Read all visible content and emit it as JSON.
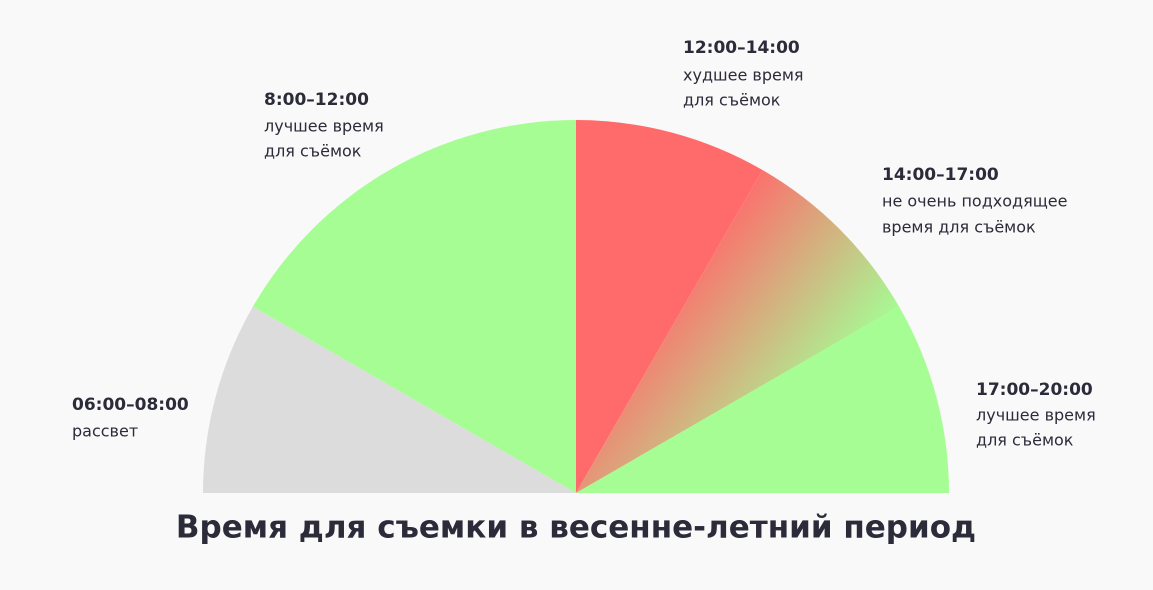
{
  "title": "Время для съемки в весенне-летний период",
  "segments": [
    {
      "time": "06:00–08:00",
      "lines": [
        "рассвет"
      ]
    },
    {
      "time": "8:00–12:00",
      "lines": [
        "лучшее время",
        "для съёмок"
      ]
    },
    {
      "time": "12:00–14:00",
      "lines": [
        "худшее время",
        "для съёмок"
      ]
    },
    {
      "time": "14:00–17:00",
      "lines": [
        "не очень подходящее",
        "время для съёмок"
      ]
    },
    {
      "time": "17:00–20:00",
      "lines": [
        "лучшее время",
        "для съёмок"
      ]
    }
  ]
}
